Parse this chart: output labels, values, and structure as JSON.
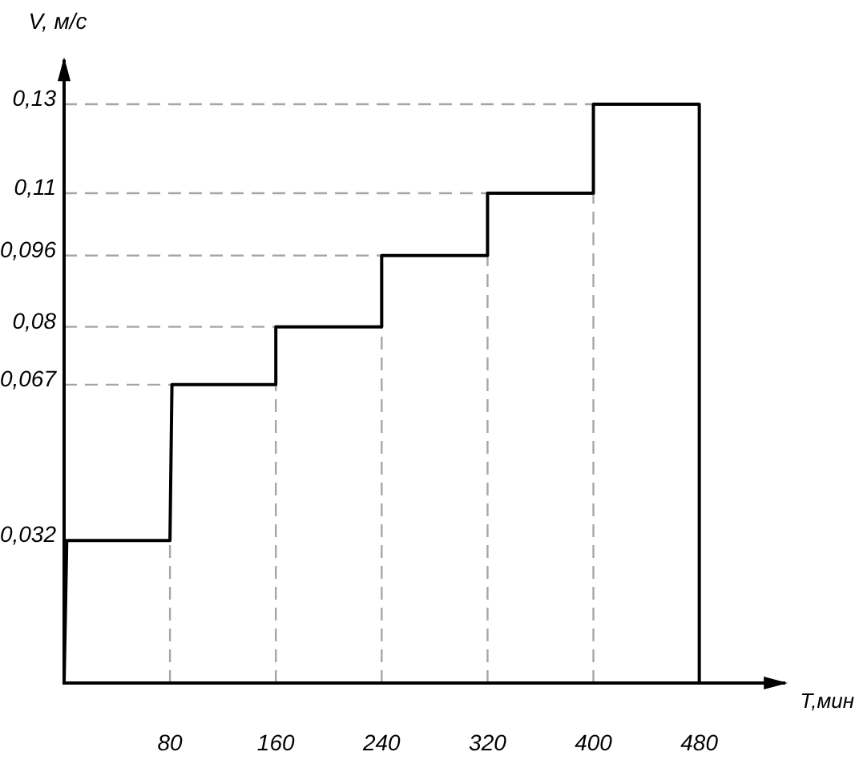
{
  "chart_data": {
    "type": "line",
    "xlabel": "Т,мин",
    "ylabel": "V, м/с",
    "x": [
      0,
      2,
      80,
      81.5,
      160,
      160,
      240,
      240,
      320,
      320,
      400,
      400,
      480,
      480
    ],
    "series": [
      {
        "color": "#000000",
        "values": [
          0,
          0.032,
          0.032,
          0.067,
          0.067,
          0.08,
          0.08,
          0.096,
          0.096,
          0.11,
          0.11,
          0.13,
          0.13,
          0
        ]
      }
    ],
    "xlim": [
      0,
      545
    ],
    "ylim": [
      0,
      0.14
    ],
    "xticks": [
      80,
      160,
      240,
      320,
      400,
      480
    ],
    "yticks": [
      {
        "value": 0.032,
        "label": "0,032"
      },
      {
        "value": 0.067,
        "label": "0,067"
      },
      {
        "value": 0.08,
        "label": "0,08"
      },
      {
        "value": 0.096,
        "label": "0,096"
      },
      {
        "value": 0.11,
        "label": "0,11"
      },
      {
        "value": 0.13,
        "label": "0,13"
      }
    ],
    "ref_lines": [
      {
        "axis": "y",
        "value": 0.067,
        "color": "#a6a6a6",
        "line_style": "dashed"
      },
      {
        "axis": "y",
        "value": 0.08,
        "color": "#a6a6a6",
        "line_style": "dashed"
      },
      {
        "axis": "y",
        "value": 0.096,
        "color": "#a6a6a6",
        "line_style": "dashed"
      },
      {
        "axis": "y",
        "value": 0.11,
        "color": "#a6a6a6",
        "line_style": "dashed"
      },
      {
        "axis": "y",
        "value": 0.13,
        "color": "#a6a6a6",
        "line_style": "dashed"
      },
      {
        "axis": "x",
        "value": 80,
        "color": "#a6a6a6",
        "line_style": "dashed"
      },
      {
        "axis": "x",
        "value": 160,
        "color": "#a6a6a6",
        "line_style": "dashed"
      },
      {
        "axis": "x",
        "value": 240,
        "color": "#a6a6a6",
        "line_style": "dashed"
      },
      {
        "axis": "x",
        "value": 320,
        "color": "#a6a6a6",
        "line_style": "dashed"
      },
      {
        "axis": "x",
        "value": 400,
        "color": "#a6a6a6",
        "line_style": "dashed"
      }
    ]
  }
}
